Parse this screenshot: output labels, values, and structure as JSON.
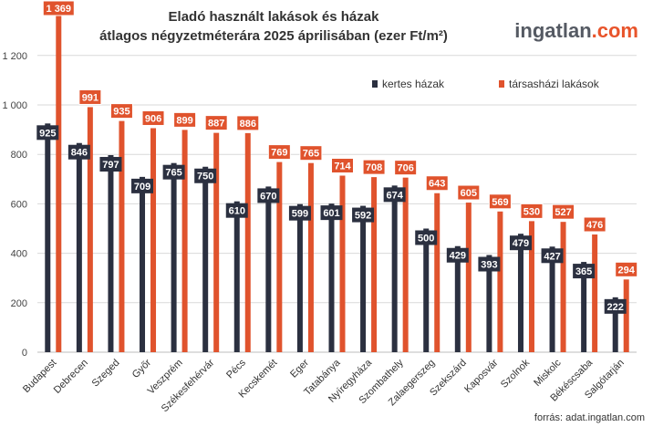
{
  "chart_data": {
    "type": "bar",
    "title_lines": [
      "Eladó használt lakások és házak",
      "átlagos négyzetméterára 2025 áprilisában (ezer Ft/m²)"
    ],
    "categories": [
      "Budapest",
      "Debrecen",
      "Szeged",
      "Győr",
      "Veszprém",
      "Székesfehérvár",
      "Pécs",
      "Kecskemét",
      "Eger",
      "Tatabánya",
      "Nyíregyháza",
      "Szombathely",
      "Zalaegerszeg",
      "Szekszárd",
      "Kaposvár",
      "Szolnok",
      "Miskolc",
      "Békéscsaba",
      "Salgótarján"
    ],
    "series": [
      {
        "name": "kertes házak",
        "color": "#2b3040",
        "values": [
          925,
          846,
          797,
          709,
          765,
          750,
          610,
          670,
          599,
          601,
          592,
          674,
          500,
          429,
          393,
          479,
          427,
          365,
          222
        ]
      },
      {
        "name": "társasházi lakások",
        "color": "#e0532d",
        "values": [
          1369,
          991,
          935,
          906,
          899,
          887,
          886,
          769,
          765,
          714,
          708,
          706,
          643,
          605,
          569,
          530,
          527,
          476,
          294
        ]
      }
    ],
    "series_labels": [
      [
        "925",
        "846",
        "797",
        "709",
        "765",
        "750",
        "610",
        "670",
        "599",
        "601",
        "592",
        "674",
        "500",
        "429",
        "393",
        "479",
        "427",
        "365",
        "222"
      ],
      [
        "1 369",
        "991",
        "935",
        "906",
        "899",
        "887",
        "886",
        "769",
        "765",
        "714",
        "708",
        "706",
        "643",
        "605",
        "569",
        "530",
        "527",
        "476",
        "294"
      ]
    ],
    "ylim": [
      0,
      1369
    ],
    "yticks": [
      0,
      200,
      400,
      600,
      800,
      1000,
      1200
    ],
    "ytick_labels": [
      "0",
      "200",
      "400",
      "600",
      "800",
      "1 000",
      "1 200"
    ],
    "grid": true,
    "legend_placement": "top-right"
  },
  "brand": {
    "name": "ingatlan",
    "suffix": ".com"
  },
  "source": "forrás: adat.ingatlan.com"
}
